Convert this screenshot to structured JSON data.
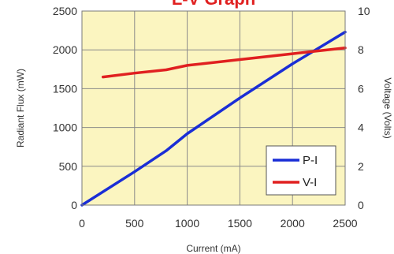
{
  "chart_data": {
    "type": "line",
    "title": "L-V Graph",
    "xlabel": "Current (mA)",
    "ylabel": "Radiant Flux (mW)",
    "y2label": "Voltage (Volts)",
    "xlim": [
      0,
      2500
    ],
    "ylim": [
      0,
      2500
    ],
    "y2lim": [
      0,
      10
    ],
    "x_ticks": [
      "0",
      "500",
      "1000",
      "1500",
      "2000",
      "2500"
    ],
    "y_ticks": [
      "0",
      "500",
      "1000",
      "1500",
      "2000",
      "2500"
    ],
    "y2_ticks": [
      "0",
      "2",
      "4",
      "6",
      "8",
      "10"
    ],
    "grid": true,
    "legend_position": "bottom-right",
    "colors": {
      "title": "#e02020",
      "plot_background": "#fbf5c0",
      "grid": "#8a8a8a"
    },
    "series": [
      {
        "name": "P-I",
        "axis": "left",
        "color": "#1a2ed6",
        "x": [
          0,
          500,
          800,
          1000,
          1500,
          2000,
          2500
        ],
        "y": [
          0,
          430,
          700,
          920,
          1380,
          1820,
          2230
        ]
      },
      {
        "name": "V-I",
        "axis": "right",
        "color": "#e02020",
        "x": [
          200,
          500,
          800,
          1000,
          1500,
          2000,
          2500
        ],
        "y": [
          6.6,
          6.8,
          6.97,
          7.2,
          7.5,
          7.8,
          8.1
        ]
      }
    ]
  }
}
